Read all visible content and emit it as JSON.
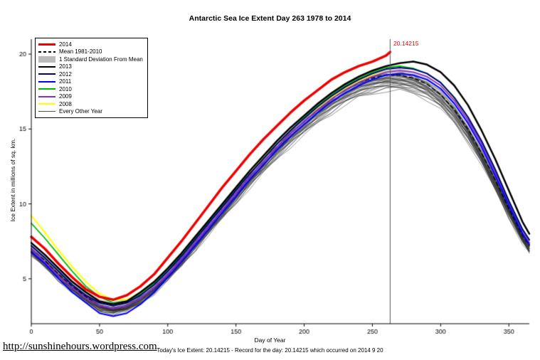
{
  "chart_data": {
    "type": "line",
    "title": "Antarctic Sea Ice Extent Day 263 1978 to 2014",
    "xlabel": "Day of Year",
    "ylabel": "Ice Extent in millions of sq. km.",
    "xlim": [
      0,
      365
    ],
    "ylim": [
      2,
      21
    ],
    "x_ticks": [
      0,
      50,
      100,
      150,
      200,
      250,
      300,
      350
    ],
    "y_ticks": [
      5,
      10,
      15,
      20
    ],
    "grid": false,
    "legend_position": "top-left",
    "vline": {
      "x": 263,
      "color": "#555555"
    },
    "annotation": {
      "text": "20.14215",
      "x": 263,
      "y": 20.14,
      "color": "#EE0000"
    },
    "x": [
      0,
      10,
      20,
      30,
      40,
      50,
      60,
      70,
      80,
      90,
      100,
      110,
      120,
      130,
      140,
      150,
      160,
      170,
      180,
      190,
      200,
      210,
      220,
      230,
      240,
      250,
      260,
      270,
      280,
      290,
      300,
      310,
      320,
      330,
      340,
      350,
      360,
      365
    ],
    "band": {
      "around": "Mean 1981-2010",
      "std": 0.45,
      "color": "#AAAAAA",
      "opacity": 0.5
    },
    "series": [
      {
        "name": "Mean 1981-2010",
        "color": "#000000",
        "lw": 1.5,
        "dash": [
          5,
          4
        ],
        "values": [
          7.0,
          6.2,
          5.3,
          4.5,
          3.8,
          3.2,
          3.0,
          3.2,
          3.7,
          4.4,
          5.3,
          6.3,
          7.4,
          8.5,
          9.6,
          10.7,
          11.8,
          12.8,
          13.8,
          14.7,
          15.5,
          16.3,
          17.0,
          17.6,
          18.1,
          18.4,
          18.6,
          18.6,
          18.4,
          18.0,
          17.3,
          16.3,
          15.0,
          13.4,
          11.6,
          9.7,
          7.9,
          7.2
        ]
      },
      {
        "name": "2008",
        "color": "#FFFF00",
        "lw": 2,
        "values": [
          9.2,
          8.1,
          6.9,
          5.8,
          4.8,
          4.0,
          3.6,
          3.6,
          4.1,
          4.8,
          5.7,
          6.7,
          7.8,
          8.9,
          10.0,
          11.0,
          12.1,
          13.1,
          14.0,
          14.9,
          15.7,
          16.4,
          17.1,
          17.7,
          18.2,
          18.6,
          18.8,
          18.9,
          18.8,
          18.5,
          17.9,
          17.0,
          15.7,
          14.1,
          12.2,
          10.1,
          8.2,
          7.5
        ]
      },
      {
        "name": "2009",
        "color": "#8A2BE2",
        "lw": 1.8,
        "values": [
          7.0,
          6.1,
          5.2,
          4.4,
          3.7,
          3.2,
          3.0,
          3.2,
          3.7,
          4.4,
          5.3,
          6.3,
          7.4,
          8.5,
          9.6,
          10.7,
          11.8,
          12.8,
          13.8,
          14.7,
          15.5,
          16.3,
          17.0,
          17.6,
          18.1,
          18.5,
          18.8,
          18.9,
          18.8,
          18.5,
          17.9,
          16.9,
          15.6,
          14.0,
          12.1,
          10.0,
          8.1,
          7.4
        ]
      },
      {
        "name": "2010",
        "color": "#00BB00",
        "lw": 1.8,
        "values": [
          8.7,
          7.7,
          6.6,
          5.5,
          4.5,
          3.8,
          3.4,
          3.5,
          4.0,
          4.7,
          5.6,
          6.6,
          7.7,
          8.8,
          9.9,
          11.0,
          12.0,
          13.0,
          14.0,
          14.9,
          15.8,
          16.6,
          17.3,
          17.9,
          18.4,
          18.8,
          19.1,
          19.2,
          19.05,
          18.7,
          18.1,
          17.1,
          15.8,
          14.2,
          12.3,
          10.2,
          8.3,
          7.6
        ]
      },
      {
        "name": "2011",
        "color": "#0000FF",
        "lw": 2,
        "values": [
          6.8,
          6.0,
          5.0,
          4.1,
          3.4,
          2.7,
          2.5,
          2.7,
          3.3,
          4.1,
          5.1,
          6.1,
          7.2,
          8.3,
          9.4,
          10.5,
          11.6,
          12.6,
          13.6,
          14.5,
          15.3,
          16.1,
          16.8,
          17.4,
          17.9,
          18.3,
          18.6,
          18.7,
          18.6,
          18.3,
          17.7,
          16.7,
          15.4,
          13.8,
          11.9,
          9.9,
          8.0,
          7.3
        ]
      },
      {
        "name": "2012",
        "color": "#000080",
        "lw": 2,
        "values": [
          7.2,
          6.4,
          5.5,
          4.6,
          3.9,
          3.4,
          3.2,
          3.4,
          3.9,
          4.6,
          5.5,
          6.5,
          7.6,
          8.7,
          9.8,
          10.9,
          12.0,
          13.0,
          14.0,
          14.9,
          15.7,
          16.5,
          17.2,
          17.8,
          18.3,
          18.7,
          19.0,
          19.1,
          19.0,
          18.7,
          18.1,
          17.1,
          15.8,
          14.2,
          12.3,
          10.2,
          8.3,
          7.6
        ]
      },
      {
        "name": "2013",
        "color": "#000000",
        "lw": 2.5,
        "values": [
          7.4,
          6.6,
          5.7,
          4.8,
          4.1,
          3.5,
          3.3,
          3.5,
          4.1,
          4.8,
          5.7,
          6.7,
          7.8,
          8.9,
          10.0,
          11.1,
          12.2,
          13.2,
          14.2,
          15.1,
          15.9,
          16.7,
          17.4,
          18.0,
          18.5,
          18.9,
          19.2,
          19.4,
          19.5,
          19.3,
          18.8,
          17.9,
          16.6,
          14.9,
          13.0,
          10.9,
          8.8,
          8.0
        ]
      },
      {
        "name": "2014",
        "color": "#EE0000",
        "lw": 3.5,
        "x": [
          0,
          10,
          20,
          30,
          40,
          50,
          60,
          70,
          80,
          90,
          100,
          110,
          120,
          130,
          140,
          150,
          160,
          170,
          180,
          190,
          200,
          210,
          220,
          230,
          240,
          250,
          260,
          263
        ],
        "values": [
          7.8,
          7.0,
          6.0,
          5.1,
          4.3,
          3.8,
          3.6,
          3.9,
          4.5,
          5.3,
          6.4,
          7.5,
          8.7,
          9.9,
          11.1,
          12.2,
          13.3,
          14.3,
          15.2,
          16.1,
          16.9,
          17.6,
          18.3,
          18.8,
          19.2,
          19.5,
          19.9,
          20.14
        ]
      }
    ],
    "other_years": {
      "label": "Every Other Year",
      "color": "#222222",
      "lw": 0.6,
      "peak_offsets_from_mean": [
        -1.05,
        -0.9,
        -0.8,
        -0.72,
        -0.65,
        -0.6,
        -0.55,
        -0.5,
        -0.45,
        -0.4,
        -0.35,
        -0.3,
        -0.25,
        -0.2,
        -0.15,
        -0.1,
        -0.05,
        0.0,
        0.05,
        0.1,
        -0.85,
        -0.68,
        -0.48,
        -0.28,
        -0.08,
        0.15
      ]
    },
    "legend": [
      {
        "label": "2014",
        "color": "#EE0000",
        "lw": 3.5
      },
      {
        "label": "Mean 1981-2010",
        "color": "#000000",
        "lw": 2,
        "dash": true
      },
      {
        "label": "1 Standard Deviation From Mean",
        "color": "#BBBBBB",
        "band": true
      },
      {
        "label": "2013",
        "color": "#000000",
        "lw": 2.5
      },
      {
        "label": "2012",
        "color": "#000080",
        "lw": 2
      },
      {
        "label": "2011",
        "color": "#0000FF",
        "lw": 2
      },
      {
        "label": "2010",
        "color": "#00BB00",
        "lw": 2
      },
      {
        "label": "2009",
        "color": "#8A2BE2",
        "lw": 2
      },
      {
        "label": "2008",
        "color": "#FFFF00",
        "lw": 2
      },
      {
        "label": "Every Other Year",
        "color": "#555555",
        "lw": 1
      }
    ]
  },
  "footer": {
    "link": "http://sunshinehours.wordpress.com",
    "note": "Today's Ice Extent: 20.14215  - Record for the day: 20.14215 which occurred on 2014 9 20"
  }
}
